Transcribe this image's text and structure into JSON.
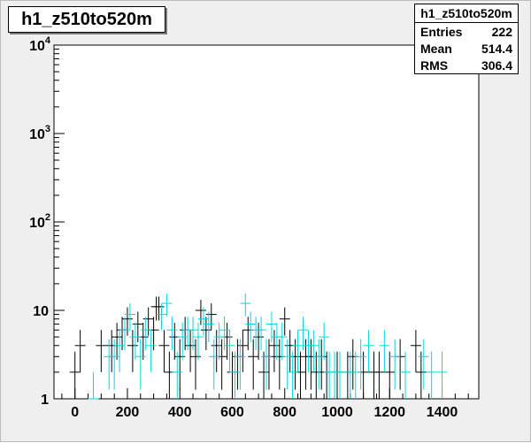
{
  "title": "h1_z510to520m",
  "stats": {
    "name": "h1_z510to520m",
    "rows": [
      {
        "label": "Entries",
        "value": "222"
      },
      {
        "label": "Mean",
        "value": "514.4"
      },
      {
        "label": "RMS",
        "value": "306.4"
      }
    ]
  },
  "chart_data": {
    "type": "scatter",
    "title": "h1_z510to520m",
    "xlabel": "",
    "ylabel": "",
    "xlim": [
      -80,
      1540
    ],
    "ylim": [
      1,
      10000
    ],
    "yscale": "log",
    "x_ticks": [
      0,
      200,
      400,
      600,
      800,
      1000,
      1200,
      1400
    ],
    "y_ticks": [
      {
        "value": 1,
        "base": "1",
        "exp": ""
      },
      {
        "value": 10,
        "base": "10",
        "exp": ""
      },
      {
        "value": 100,
        "base": "10",
        "exp": "2"
      },
      {
        "value": 1000,
        "base": "10",
        "exp": "3"
      },
      {
        "value": 10000,
        "base": "10",
        "exp": "4"
      }
    ],
    "grid": false,
    "series": [
      {
        "color": "#000000",
        "points": [
          [
            0,
            2
          ],
          [
            20,
            4
          ],
          [
            100,
            4
          ],
          [
            140,
            4
          ],
          [
            160,
            5
          ],
          [
            180,
            6
          ],
          [
            200,
            8
          ],
          [
            220,
            4
          ],
          [
            240,
            7
          ],
          [
            260,
            5
          ],
          [
            280,
            8
          ],
          [
            300,
            6
          ],
          [
            310,
            11
          ],
          [
            320,
            11
          ],
          [
            340,
            4
          ],
          [
            360,
            2
          ],
          [
            380,
            5
          ],
          [
            400,
            3
          ],
          [
            420,
            6
          ],
          [
            440,
            4
          ],
          [
            460,
            3
          ],
          [
            480,
            10
          ],
          [
            500,
            6
          ],
          [
            520,
            9
          ],
          [
            540,
            4
          ],
          [
            560,
            3
          ],
          [
            580,
            5
          ],
          [
            600,
            2
          ],
          [
            620,
            3
          ],
          [
            640,
            4
          ],
          [
            660,
            6
          ],
          [
            680,
            3
          ],
          [
            700,
            5
          ],
          [
            720,
            2
          ],
          [
            740,
            3
          ],
          [
            760,
            4
          ],
          [
            780,
            3
          ],
          [
            800,
            8
          ],
          [
            820,
            4
          ],
          [
            840,
            3
          ],
          [
            860,
            2
          ],
          [
            880,
            3
          ],
          [
            900,
            3
          ],
          [
            920,
            2
          ],
          [
            940,
            3
          ],
          [
            960,
            2
          ],
          [
            1000,
            2
          ],
          [
            1040,
            2
          ],
          [
            1060,
            3
          ],
          [
            1100,
            2
          ],
          [
            1140,
            2
          ],
          [
            1160,
            2
          ],
          [
            1200,
            2
          ],
          [
            1240,
            3
          ],
          [
            1300,
            4
          ],
          [
            1320,
            2
          ]
        ]
      },
      {
        "color": "#00d8e0",
        "points": [
          [
            70,
            1
          ],
          [
            130,
            3
          ],
          [
            150,
            3
          ],
          [
            170,
            4
          ],
          [
            190,
            6
          ],
          [
            210,
            9
          ],
          [
            230,
            5
          ],
          [
            250,
            3
          ],
          [
            270,
            6
          ],
          [
            290,
            4
          ],
          [
            330,
            9
          ],
          [
            350,
            12
          ],
          [
            370,
            6
          ],
          [
            390,
            2
          ],
          [
            410,
            5
          ],
          [
            430,
            6
          ],
          [
            450,
            6
          ],
          [
            470,
            5
          ],
          [
            490,
            8
          ],
          [
            510,
            7
          ],
          [
            530,
            3
          ],
          [
            550,
            5
          ],
          [
            570,
            6
          ],
          [
            590,
            4
          ],
          [
            610,
            2
          ],
          [
            630,
            3
          ],
          [
            650,
            12
          ],
          [
            670,
            7
          ],
          [
            690,
            6
          ],
          [
            710,
            6
          ],
          [
            730,
            3
          ],
          [
            750,
            7
          ],
          [
            770,
            5
          ],
          [
            790,
            5
          ],
          [
            810,
            3
          ],
          [
            830,
            2
          ],
          [
            850,
            4
          ],
          [
            870,
            6
          ],
          [
            890,
            4
          ],
          [
            910,
            4
          ],
          [
            930,
            3
          ],
          [
            950,
            5
          ],
          [
            970,
            2
          ],
          [
            990,
            2
          ],
          [
            1010,
            2
          ],
          [
            1050,
            2
          ],
          [
            1070,
            2
          ],
          [
            1090,
            3
          ],
          [
            1120,
            4
          ],
          [
            1180,
            4
          ],
          [
            1220,
            3
          ],
          [
            1260,
            2
          ],
          [
            1330,
            3
          ],
          [
            1360,
            2
          ],
          [
            1400,
            2
          ]
        ]
      }
    ]
  }
}
